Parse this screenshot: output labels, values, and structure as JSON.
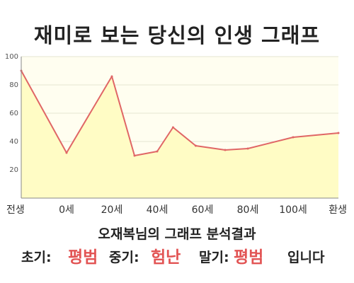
{
  "title": "재미로 보는 당신의 인생 그래프",
  "chart_data": {
    "type": "area",
    "x_ticks": [
      "전생",
      "0세",
      "20세",
      "40세",
      "60세",
      "80세",
      "100세",
      "환생"
    ],
    "x": [
      -20,
      0,
      20,
      30,
      40,
      47,
      57,
      70,
      80,
      100,
      120
    ],
    "values": [
      90,
      32,
      86,
      30,
      33,
      50,
      37,
      34,
      35,
      43,
      46
    ],
    "xlim": [
      -20,
      120
    ],
    "ylim": [
      0,
      100
    ],
    "y_ticks": [
      20,
      40,
      60,
      80,
      100
    ],
    "line_color": "#e06666",
    "fill_color": "#fffcc5",
    "background_color": "#fffef0",
    "grid": true
  },
  "summary": {
    "heading": "오재복님의 그래프 분석결과",
    "early_label": "초기:",
    "early_value": "평범",
    "middle_label": "중기:",
    "middle_value": "험난",
    "late_label": "말기:",
    "late_value": "평범",
    "suffix": "입니다",
    "highlight_color": "#e25454"
  }
}
